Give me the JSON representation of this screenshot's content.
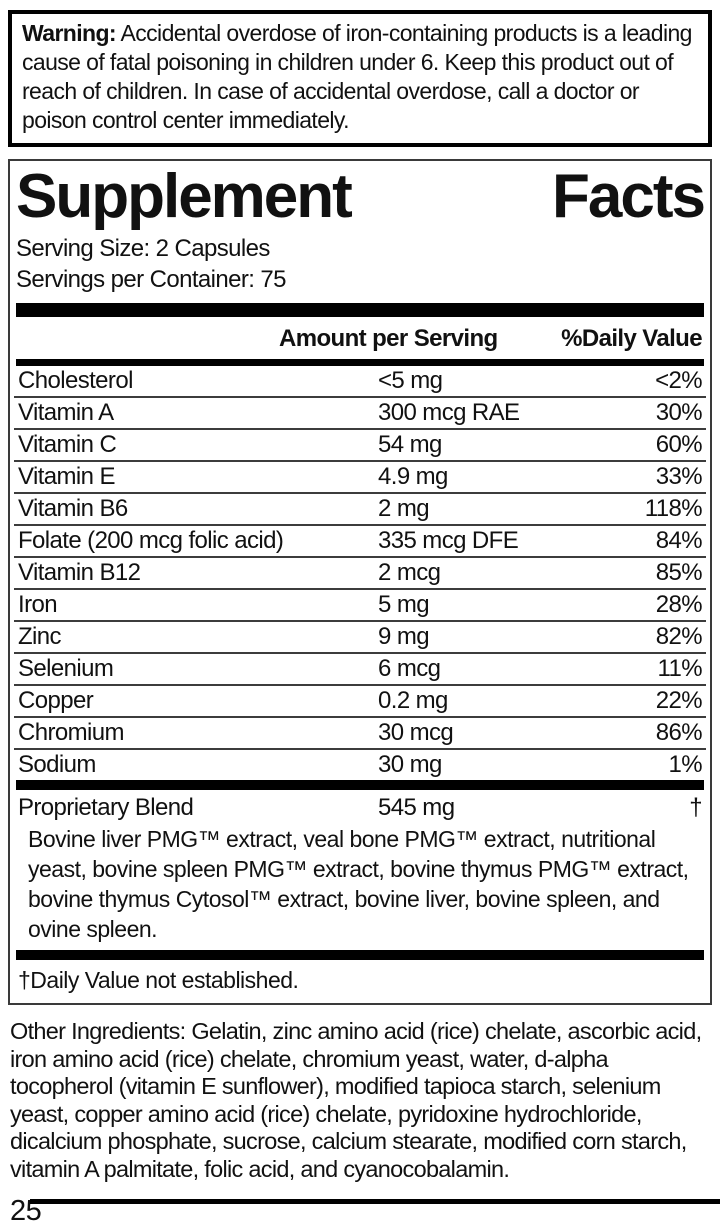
{
  "warning": {
    "label": "Warning:",
    "text": " Accidental overdose of iron-containing products is a leading cause of fatal poisoning in children under 6. Keep this product out of reach of children. In case of accidental overdose, call a doctor or poison control center immediately."
  },
  "panel": {
    "title_word1": "Supplement",
    "title_word2": "Facts",
    "serving_size": "Serving Size: 2 Capsules",
    "servings_per_container": "Servings per Container: 75",
    "columns": {
      "amount": "Amount per Serving",
      "daily_value": "%Daily Value"
    },
    "rows": [
      {
        "name": "Cholesterol",
        "amount": "<5 mg",
        "dv": "<2%"
      },
      {
        "name": "Vitamin A",
        "amount": "300 mcg RAE",
        "dv": "30%"
      },
      {
        "name": "Vitamin C",
        "amount": "54 mg",
        "dv": "60%"
      },
      {
        "name": "Vitamin E",
        "amount": "4.9 mg",
        "dv": "33%"
      },
      {
        "name": "Vitamin B6",
        "amount": "2 mg",
        "dv": "118%"
      },
      {
        "name": "Folate (200 mcg folic acid)",
        "amount": "335 mcg DFE",
        "dv": "84%"
      },
      {
        "name": "Vitamin B12",
        "amount": "2 mcg",
        "dv": "85%"
      },
      {
        "name": "Iron",
        "amount": "5 mg",
        "dv": "28%"
      },
      {
        "name": "Zinc",
        "amount": "9 mg",
        "dv": "82%"
      },
      {
        "name": "Selenium",
        "amount": "6 mcg",
        "dv": "11%"
      },
      {
        "name": "Copper",
        "amount": "0.2 mg",
        "dv": "22%"
      },
      {
        "name": "Chromium",
        "amount": "30 mcg",
        "dv": "86%"
      },
      {
        "name": "Sodium",
        "amount": "30 mg",
        "dv": "1%"
      }
    ],
    "blend": {
      "name": "Proprietary Blend",
      "amount": "545 mg",
      "dv": "†",
      "description": "Bovine liver PMG™ extract, veal bone PMG™ extract, nutritional yeast, bovine spleen PMG™ extract, bovine thymus PMG™ extract, bovine thymus Cytosol™ extract, bovine liver, bovine spleen, and ovine spleen."
    },
    "footnote": "†Daily Value not established."
  },
  "other_ingredients": "Other Ingredients: Gelatin, zinc amino acid (rice) chelate, ascorbic acid, iron amino acid (rice) chelate, chromium yeast, water, d-alpha tocopherol (vitamin E sunflower), modified tapioca starch, selenium yeast, copper amino acid (rice) chelate, pyridoxine hydrochloride, dicalcium phosphate, sucrose, calcium stearate, modified corn starch, vitamin A palmitate,  folic acid, and cyanocobalamin.",
  "page_number": "25"
}
